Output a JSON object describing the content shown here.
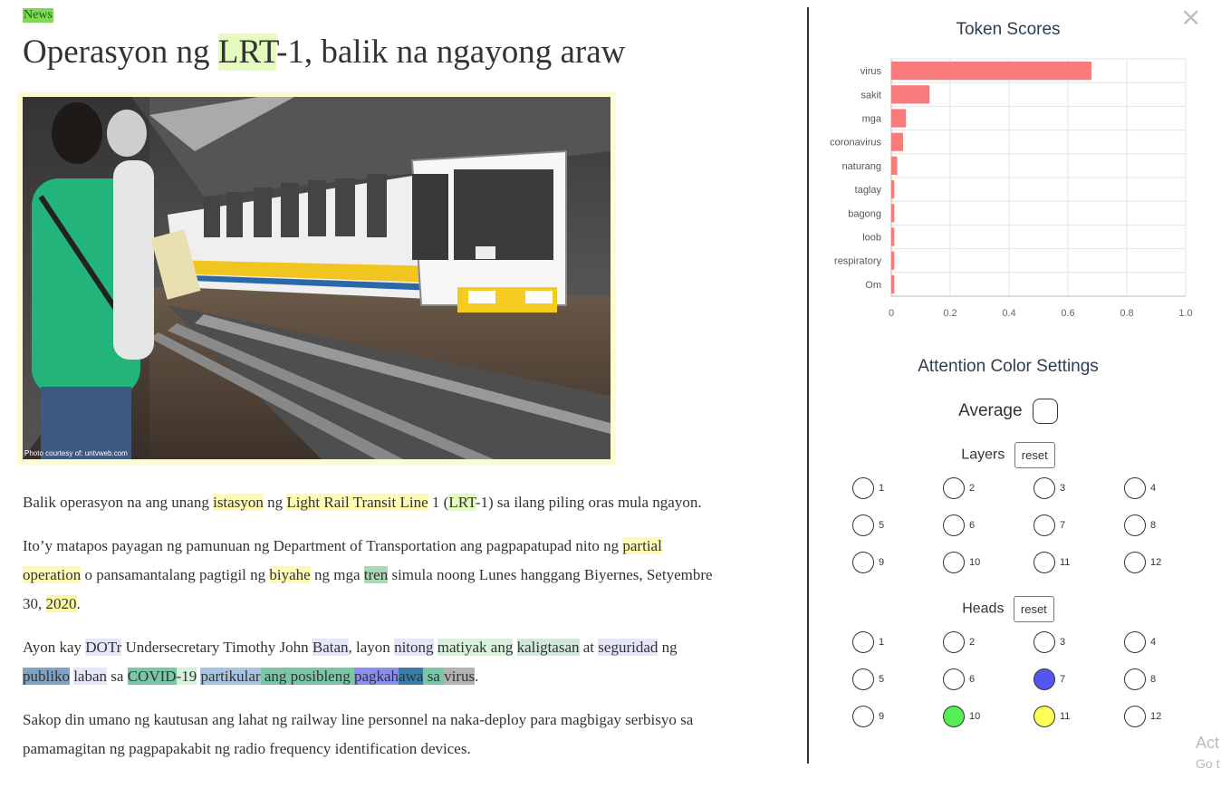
{
  "article": {
    "category": "News",
    "title_parts": [
      "Operasyon ng ",
      "LRT",
      "-1, balik na ngayong araw"
    ],
    "photo_credit": "Photo courtesy of: untvweb.com"
  },
  "panel": {
    "close_glyph": "×",
    "token_scores_title": "Token Scores",
    "attention_title": "Attention Color Settings",
    "average_label": "Average",
    "layers_label": "Layers",
    "heads_label": "Heads",
    "reset_label": "reset",
    "layers": [
      "1",
      "2",
      "3",
      "4",
      "5",
      "6",
      "7",
      "8",
      "9",
      "10",
      "11",
      "12"
    ],
    "heads": [
      "1",
      "2",
      "3",
      "4",
      "5",
      "6",
      "7",
      "8",
      "9",
      "10",
      "11",
      "12"
    ],
    "head_colors": {
      "7": "#5555f0",
      "10": "#55ee55",
      "11": "#ffff55"
    }
  },
  "chart_data": {
    "type": "bar",
    "orientation": "horizontal",
    "title": "Token Scores",
    "categories": [
      "virus",
      "sakit",
      "mga",
      "coronavirus",
      "naturang",
      "taglay",
      "bagong",
      "loob",
      "respiratory",
      "Om"
    ],
    "values": [
      0.68,
      0.13,
      0.05,
      0.04,
      0.02,
      0.01,
      0.01,
      0.01,
      0.01,
      0.01
    ],
    "xlim": [
      0,
      1.0
    ],
    "xticks": [
      "0",
      "0.2",
      "0.4",
      "0.6",
      "0.8",
      "1.0"
    ],
    "color": "#f77b7b",
    "grid": true
  },
  "watermark": {
    "line1": "Act",
    "line2": "Go t"
  }
}
